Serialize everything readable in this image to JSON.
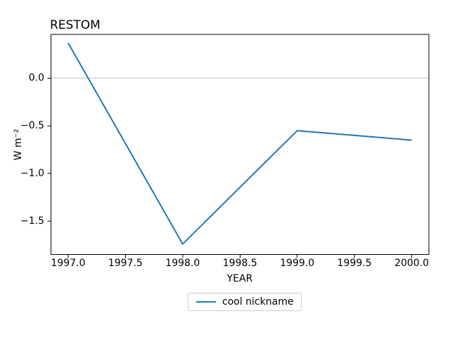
{
  "window": {
    "background": "#ffffff"
  },
  "chart_data": {
    "type": "line",
    "title": "RESTOM",
    "xlabel": "YEAR",
    "ylabel": "W m⁻²",
    "x": [
      1997.0,
      1998.0,
      1999.0,
      2000.0
    ],
    "series": [
      {
        "name": "cool nickname",
        "color": "#1f77b4",
        "values": [
          0.37,
          -1.74,
          -0.55,
          -0.65
        ]
      }
    ],
    "xlim": [
      1996.85,
      2000.15
    ],
    "ylim": [
      -1.85,
      0.46
    ],
    "xticks": [
      1997.0,
      1997.5,
      1998.0,
      1998.5,
      1999.0,
      1999.5,
      2000.0
    ],
    "yticks": [
      0.0,
      -0.5,
      -1.0,
      -1.5
    ],
    "tick_decimals": 1,
    "grid": false,
    "zero_line": {
      "y": 0.0,
      "color": "#d3d3d3"
    },
    "legend": {
      "position": "bottom-center-outside",
      "border_color": "#cccccc",
      "background": "#ffffff"
    },
    "axis_color": "#000000",
    "text_color": "#000000"
  }
}
